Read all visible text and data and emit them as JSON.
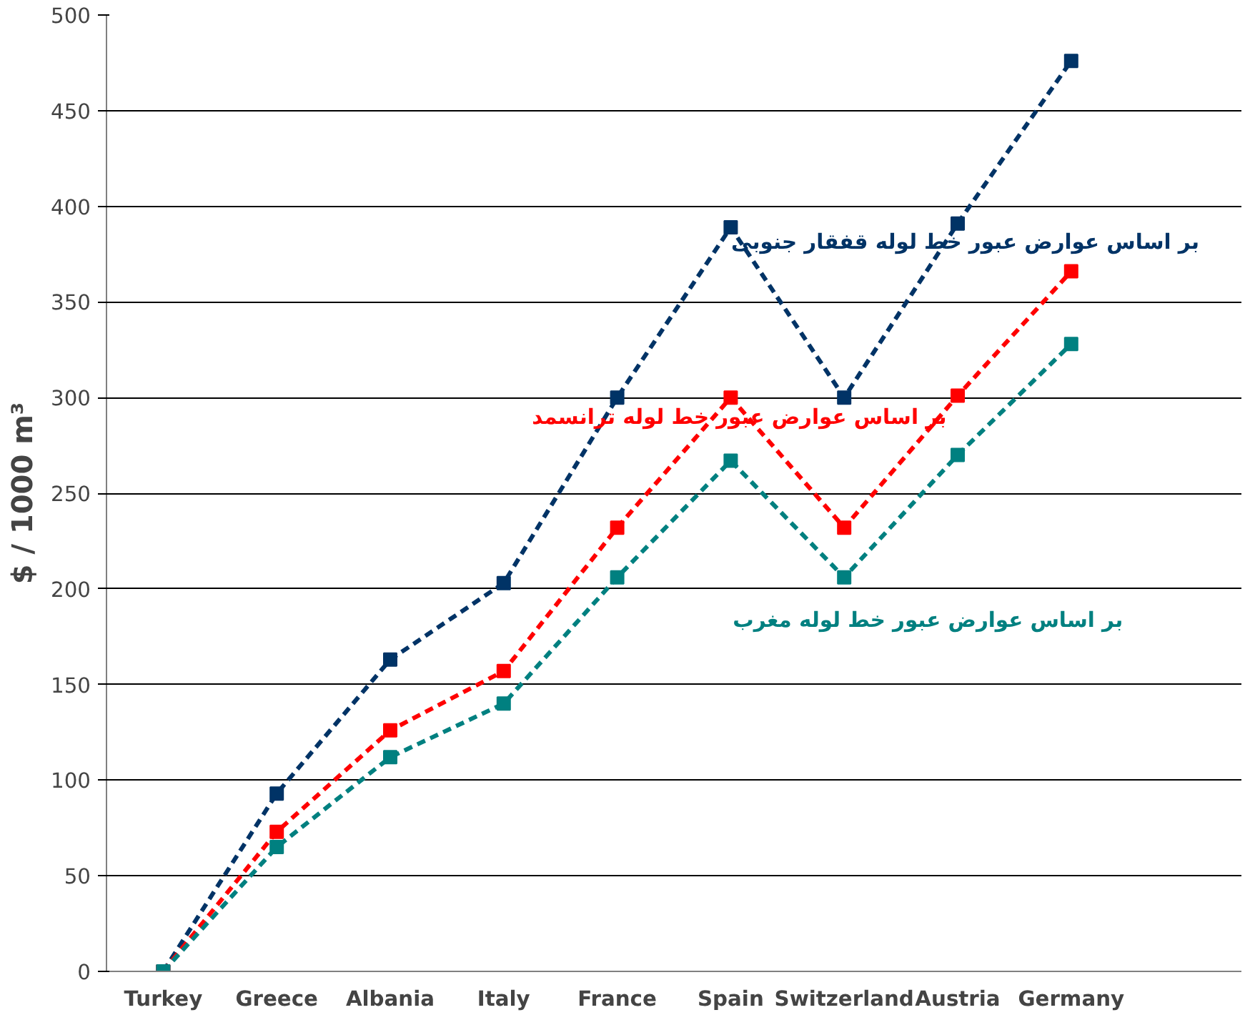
{
  "chart_data": {
    "type": "line",
    "ylabel": "$ / 1000 m³",
    "categories": [
      "Turkey",
      "Greece",
      "Albania",
      "Italy",
      "France",
      "Spain",
      "Switzerland",
      "Austria",
      "Germany",
      null
    ],
    "series": [
      {
        "name": "بر اساس عوارض عبور خط لوله قفقار جنوبی",
        "color": "#003366",
        "values": [
          0,
          93,
          163,
          203,
          300,
          389,
          300,
          391,
          476,
          null
        ]
      },
      {
        "name": "بر اساس عوارض عبور خط لوله ترانسمد",
        "color": "#ff0000",
        "values": [
          0,
          73,
          126,
          157,
          232,
          300,
          232,
          301,
          366,
          null
        ]
      },
      {
        "name": "بر اساس عوارض عبور خط لوله مغرب",
        "color": "#008080",
        "values": [
          0,
          65,
          112,
          140,
          206,
          267,
          206,
          270,
          328,
          null
        ]
      }
    ],
    "ylim": [
      0,
      500
    ],
    "yticks": [
      0,
      50,
      100,
      150,
      200,
      250,
      300,
      350,
      400,
      450,
      500
    ],
    "grid": "y",
    "marker": "square",
    "line_style": "dashed"
  }
}
